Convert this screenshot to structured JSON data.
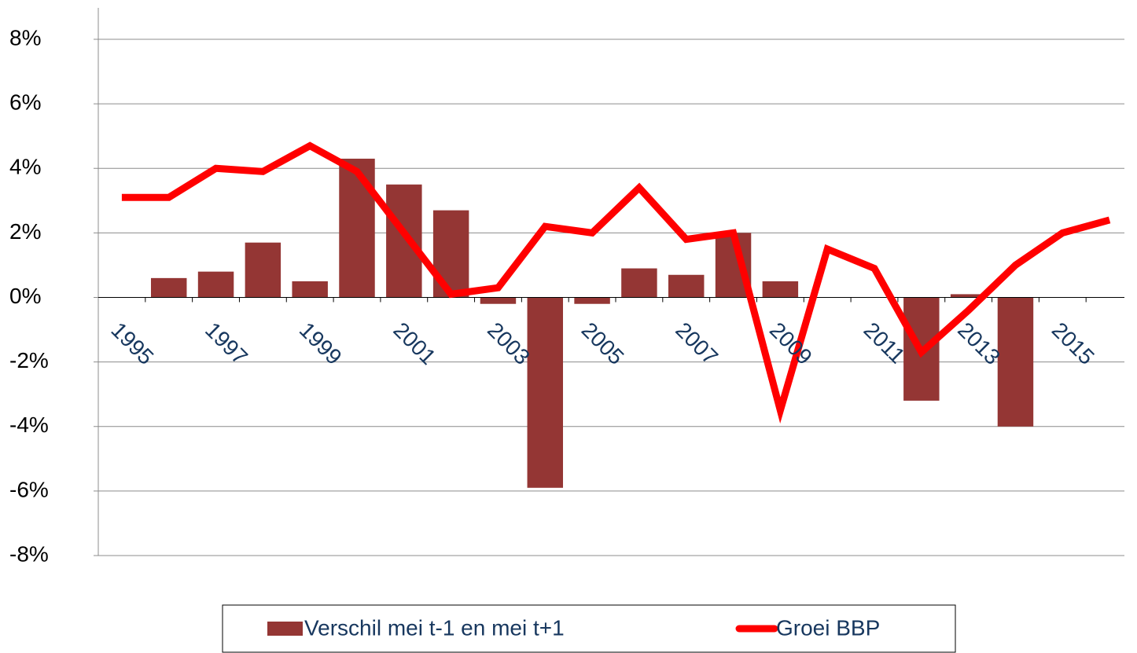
{
  "chart_data": {
    "type": "bar-line",
    "categories": [
      "1995",
      null,
      "1997",
      null,
      "1999",
      null,
      "2001",
      null,
      "2003",
      null,
      "2005",
      null,
      "2007",
      null,
      "2009",
      null,
      "2011",
      null,
      "2013",
      null,
      "2015",
      null
    ],
    "series": [
      {
        "name": "Verschil mei t-1 en mei t+1",
        "type": "bar",
        "color": "#943634",
        "values": [
          null,
          0.6,
          0.8,
          1.7,
          0.5,
          4.3,
          3.5,
          2.7,
          -0.2,
          -5.9,
          -0.2,
          0.9,
          0.7,
          2.0,
          0.5,
          null,
          null,
          -3.2,
          0.1,
          -4.0,
          null,
          null
        ]
      },
      {
        "name": "Groei BBP",
        "type": "line",
        "color": "#ff0000",
        "values": [
          3.1,
          3.1,
          4.0,
          3.9,
          4.7,
          3.9,
          2.0,
          0.1,
          0.3,
          2.2,
          2.0,
          3.4,
          1.8,
          2.0,
          -3.5,
          1.5,
          0.9,
          -1.7,
          -0.4,
          1.0,
          2.0,
          2.4
        ]
      }
    ],
    "ylim": [
      -8,
      8
    ],
    "yticks": [
      {
        "value": -8,
        "label": "-8%"
      },
      {
        "value": -6,
        "label": "-6%"
      },
      {
        "value": -4,
        "label": "-4%"
      },
      {
        "value": -2,
        "label": "-2%"
      },
      {
        "value": 0,
        "label": "0%"
      },
      {
        "value": 2,
        "label": "2%"
      },
      {
        "value": 4,
        "label": "4%"
      },
      {
        "value": 6,
        "label": "6%"
      },
      {
        "value": 8,
        "label": "8%"
      }
    ],
    "grid": true
  }
}
